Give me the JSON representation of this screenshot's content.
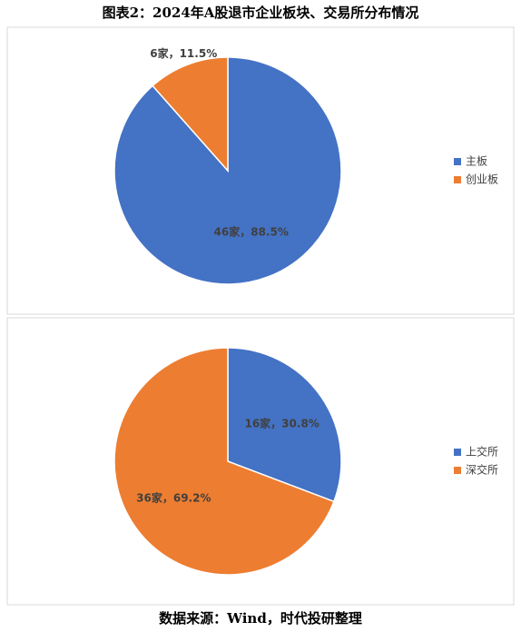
{
  "title": "图表2：2024年A股退市企业板块、交易所分布情况",
  "source": "数据来源：Wind，时代投研整理",
  "chart_data": [
    {
      "type": "pie",
      "categories": [
        "主板",
        "创业板"
      ],
      "values": [
        46,
        6
      ],
      "value_labels": [
        "46家，88.5%",
        "6家，11.5%"
      ],
      "colors": [
        "#4472c4",
        "#ed7d31"
      ],
      "legend": "right"
    },
    {
      "type": "pie",
      "categories": [
        "上交所",
        "深交所"
      ],
      "values": [
        16,
        36
      ],
      "value_labels": [
        "16家，30.8%",
        "36家，69.2%"
      ],
      "colors": [
        "#4472c4",
        "#ed7d31"
      ],
      "legend": "right"
    }
  ]
}
